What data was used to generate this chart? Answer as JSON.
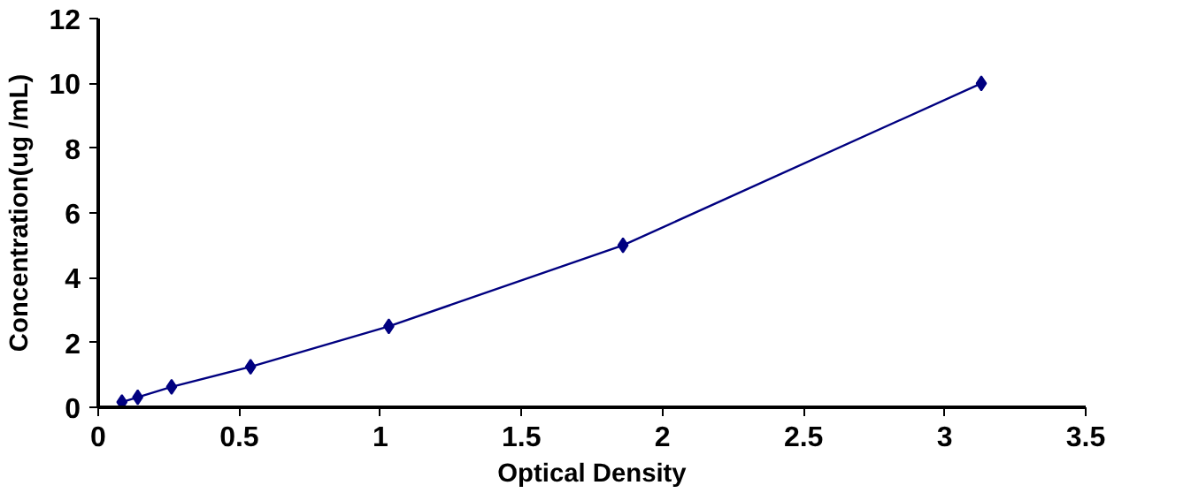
{
  "chart_data": {
    "type": "line",
    "xlabel": "Optical Density",
    "ylabel": "Concentration(ug /mL)",
    "x": [
      0.084,
      0.14,
      0.26,
      0.54,
      1.03,
      1.86,
      3.13
    ],
    "series": [
      {
        "color": "#000080",
        "values": [
          0.16,
          0.31,
          0.63,
          1.25,
          2.5,
          5,
          10
        ]
      }
    ],
    "xlim": [
      0,
      3.5
    ],
    "xticks": [
      0,
      0.5,
      1,
      1.5,
      2,
      2.5,
      3,
      3.5
    ],
    "ylim": [
      0,
      12
    ],
    "yticks": [
      0,
      2,
      4,
      6,
      8,
      10,
      12
    ],
    "marker": "diamond",
    "line_style": "solid",
    "grid": false
  }
}
